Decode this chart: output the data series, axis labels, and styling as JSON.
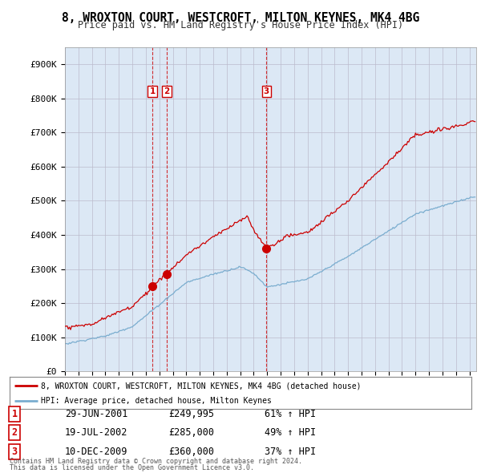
{
  "title": "8, WROXTON COURT, WESTCROFT, MILTON KEYNES, MK4 4BG",
  "subtitle": "Price paid vs. HM Land Registry's House Price Index (HPI)",
  "legend_line1": "8, WROXTON COURT, WESTCROFT, MILTON KEYNES, MK4 4BG (detached house)",
  "legend_line2": "HPI: Average price, detached house, Milton Keynes",
  "footer1": "Contains HM Land Registry data © Crown copyright and database right 2024.",
  "footer2": "This data is licensed under the Open Government Licence v3.0.",
  "transactions": [
    {
      "num": 1,
      "date": "29-JUN-2001",
      "price": "£249,995",
      "change": "61% ↑ HPI",
      "year": 2001.49
    },
    {
      "num": 2,
      "date": "19-JUL-2002",
      "price": "£285,000",
      "change": "49% ↑ HPI",
      "year": 2002.55
    },
    {
      "num": 3,
      "date": "10-DEC-2009",
      "price": "£360,000",
      "change": "37% ↑ HPI",
      "year": 2009.94
    }
  ],
  "transaction_marker_values": [
    249995,
    285000,
    360000
  ],
  "hpi_color": "#7aadcf",
  "price_color": "#cc0000",
  "vline_color": "#cc0000",
  "chart_bg_color": "#dce8f5",
  "background_color": "#ffffff",
  "grid_color": "#bbbbcc",
  "ylim": [
    0,
    950000
  ],
  "xlim_start": 1995.0,
  "xlim_end": 2025.5
}
